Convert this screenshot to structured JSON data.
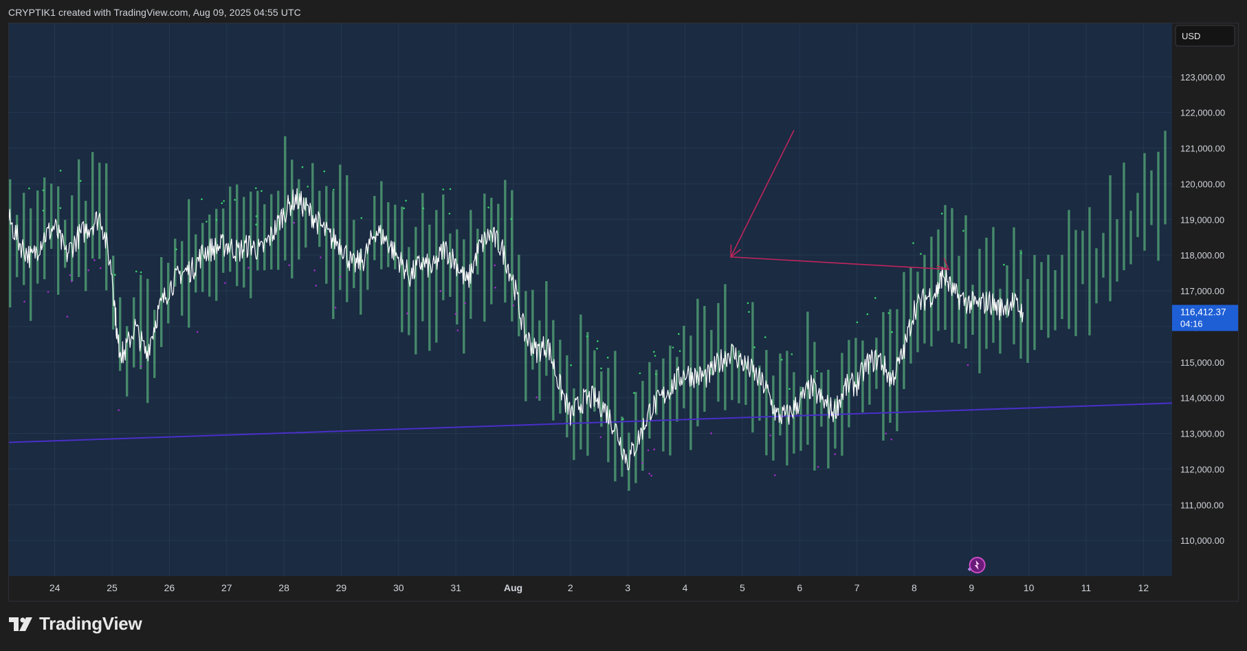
{
  "header": {
    "credit": "CRYPTIK1 created with TradingView.com, Aug 09, 2025 04:55 UTC"
  },
  "footer": {
    "logo_text": "TradingView"
  },
  "colors": {
    "background": "#1e1e1e",
    "plot_background": "#1a2b42",
    "grid": "#26384f",
    "candle_bar": "#4e9a72",
    "price_line": "#ffffff",
    "trend_line": "#4a2fc9",
    "arrow_annotation": "#c2255c",
    "dots_green": "#39d26a",
    "dots_purple": "#a52cc9",
    "price_badge": "#1e5fd6",
    "axis_text": "#d1d4dc"
  },
  "icons": {
    "alert_marker": "rocket-bolt-icon",
    "brand": "tradingview-logo-icon"
  },
  "chart_data": {
    "type": "line",
    "title": "",
    "currency_label": "USD",
    "y_tick_labels": [
      "123,000.00",
      "122,000.00",
      "121,000.00",
      "120,000.00",
      "119,000.00",
      "118,000.00",
      "117,000.00",
      "116,000.00",
      "115,000.00",
      "114,000.00",
      "113,000.00",
      "112,000.00",
      "111,000.00",
      "110,000.00"
    ],
    "y_ticks": [
      123000,
      122000,
      121000,
      120000,
      119000,
      118000,
      117000,
      116000,
      115000,
      114000,
      113000,
      112000,
      111000,
      110000
    ],
    "ylim": [
      109000,
      124500
    ],
    "x_tick_labels": [
      "24",
      "25",
      "26",
      "27",
      "28",
      "29",
      "30",
      "31",
      "Aug",
      "2",
      "3",
      "4",
      "5",
      "6",
      "7",
      "8",
      "9",
      "10",
      "11",
      "12"
    ],
    "x_ticks": [
      0,
      1,
      2,
      3,
      4,
      5,
      6,
      7,
      8,
      9,
      10,
      11,
      12,
      13,
      14,
      15,
      16,
      17,
      18,
      19
    ],
    "xlim": [
      -0.8,
      19.5
    ],
    "grid": true,
    "last_price": {
      "value": 116412.37,
      "label": "116,412.37",
      "countdown": "04:16"
    },
    "series": [
      {
        "name": "",
        "style": "line",
        "points": [
          [
            -0.8,
            119000
          ],
          [
            -0.6,
            118300
          ],
          [
            -0.4,
            117900
          ],
          [
            -0.2,
            118500
          ],
          [
            0,
            118800
          ],
          [
            0.2,
            118000
          ],
          [
            0.4,
            118500
          ],
          [
            0.6,
            118800
          ],
          [
            0.8,
            119100
          ],
          [
            1.0,
            117500
          ],
          [
            1.1,
            115500
          ],
          [
            1.2,
            115200
          ],
          [
            1.4,
            116000
          ],
          [
            1.6,
            115200
          ],
          [
            1.8,
            116400
          ],
          [
            2.0,
            117100
          ],
          [
            2.2,
            117500
          ],
          [
            2.4,
            117600
          ],
          [
            2.6,
            118100
          ],
          [
            2.8,
            118200
          ],
          [
            3.0,
            118300
          ],
          [
            3.2,
            118100
          ],
          [
            3.4,
            118300
          ],
          [
            3.6,
            118100
          ],
          [
            3.8,
            118600
          ],
          [
            4.0,
            119200
          ],
          [
            4.2,
            119600
          ],
          [
            4.4,
            119300
          ],
          [
            4.6,
            118900
          ],
          [
            4.8,
            118500
          ],
          [
            5.0,
            118300
          ],
          [
            5.2,
            117700
          ],
          [
            5.4,
            117900
          ],
          [
            5.6,
            118700
          ],
          [
            5.8,
            118400
          ],
          [
            6.0,
            117900
          ],
          [
            6.2,
            117400
          ],
          [
            6.4,
            117800
          ],
          [
            6.6,
            117600
          ],
          [
            6.8,
            118200
          ],
          [
            7.0,
            117800
          ],
          [
            7.2,
            117200
          ],
          [
            7.4,
            118200
          ],
          [
            7.6,
            118600
          ],
          [
            7.8,
            118200
          ],
          [
            8.0,
            117300
          ],
          [
            8.2,
            115800
          ],
          [
            8.4,
            115300
          ],
          [
            8.6,
            115500
          ],
          [
            8.8,
            114400
          ],
          [
            9.0,
            113500
          ],
          [
            9.2,
            113900
          ],
          [
            9.4,
            114000
          ],
          [
            9.6,
            113700
          ],
          [
            9.8,
            113100
          ],
          [
            10.0,
            112200
          ],
          [
            10.2,
            112900
          ],
          [
            10.4,
            113700
          ],
          [
            10.6,
            114000
          ],
          [
            10.8,
            114400
          ],
          [
            11.0,
            114700
          ],
          [
            11.2,
            114600
          ],
          [
            11.4,
            114600
          ],
          [
            11.6,
            115000
          ],
          [
            11.8,
            115300
          ],
          [
            12.0,
            115000
          ],
          [
            12.2,
            114700
          ],
          [
            12.4,
            114300
          ],
          [
            12.6,
            113500
          ],
          [
            12.8,
            113500
          ],
          [
            13.0,
            113900
          ],
          [
            13.2,
            114300
          ],
          [
            13.4,
            113900
          ],
          [
            13.6,
            113600
          ],
          [
            13.8,
            114300
          ],
          [
            14.0,
            114400
          ],
          [
            14.2,
            115000
          ],
          [
            14.4,
            115100
          ],
          [
            14.6,
            114500
          ],
          [
            14.8,
            115200
          ],
          [
            15.0,
            116500
          ],
          [
            15.2,
            116800
          ],
          [
            15.4,
            117000
          ],
          [
            15.5,
            117500
          ],
          [
            15.7,
            116900
          ],
          [
            15.9,
            116700
          ],
          [
            16.1,
            116600
          ],
          [
            16.3,
            116700
          ],
          [
            16.5,
            116500
          ],
          [
            16.7,
            116700
          ],
          [
            16.9,
            116400
          ]
        ]
      },
      {
        "name": "",
        "style": "trendline",
        "points": [
          [
            -0.8,
            112750
          ],
          [
            19.5,
            113850
          ]
        ]
      }
    ],
    "annotations": [
      {
        "type": "arrows",
        "points": [
          [
            12.9,
            121500
          ],
          [
            11.8,
            117950
          ],
          [
            15.6,
            117600
          ]
        ]
      }
    ]
  }
}
